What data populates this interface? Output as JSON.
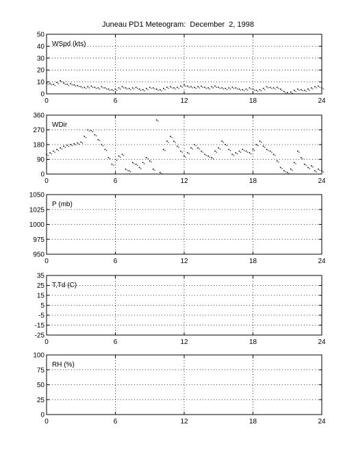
{
  "title": "Juneau PD1 Meteogram:  December  2, 1998",
  "chart_data": [
    {
      "type": "scatter",
      "label": "WSpd (kts)",
      "x_ticks": [
        0,
        6,
        12,
        18,
        24
      ],
      "xlim": [
        0,
        24
      ],
      "ylim": [
        0,
        50
      ],
      "y_ticks": [
        0,
        10,
        20,
        30,
        40,
        50
      ],
      "grid": true,
      "series": [
        {
          "values": [
            [
              0.0,
              9
            ],
            [
              0.3,
              8.5
            ],
            [
              0.6,
              8
            ],
            [
              0.9,
              9.5
            ],
            [
              1.2,
              11
            ],
            [
              1.5,
              9
            ],
            [
              1.8,
              8
            ],
            [
              2.1,
              8.5
            ],
            [
              2.4,
              7.5
            ],
            [
              2.7,
              7
            ],
            [
              3.0,
              6
            ],
            [
              3.3,
              5.5
            ],
            [
              3.6,
              6
            ],
            [
              3.9,
              6.5
            ],
            [
              4.2,
              5.5
            ],
            [
              4.5,
              5
            ],
            [
              4.8,
              6
            ],
            [
              5.1,
              5
            ],
            [
              5.4,
              4
            ],
            [
              5.7,
              3.5
            ],
            [
              6.0,
              4
            ],
            [
              6.3,
              5
            ],
            [
              6.6,
              6
            ],
            [
              6.9,
              5
            ],
            [
              7.2,
              4.5
            ],
            [
              7.5,
              5
            ],
            [
              7.8,
              5.5
            ],
            [
              8.1,
              4
            ],
            [
              8.4,
              3.5
            ],
            [
              8.7,
              4.5
            ],
            [
              9.0,
              5.5
            ],
            [
              9.3,
              5
            ],
            [
              9.6,
              4
            ],
            [
              9.9,
              3.5
            ],
            [
              10.2,
              4.5
            ],
            [
              10.5,
              5.5
            ],
            [
              10.8,
              6
            ],
            [
              11.1,
              5
            ],
            [
              11.4,
              5.5
            ],
            [
              11.7,
              6.5
            ],
            [
              12.0,
              7.5
            ],
            [
              12.3,
              6.5
            ],
            [
              12.6,
              6
            ],
            [
              12.9,
              5.5
            ],
            [
              13.2,
              6
            ],
            [
              13.5,
              6.5
            ],
            [
              13.8,
              5.5
            ],
            [
              14.1,
              5
            ],
            [
              14.4,
              6
            ],
            [
              14.7,
              6.5
            ],
            [
              15.0,
              5.5
            ],
            [
              15.3,
              5
            ],
            [
              15.6,
              4.5
            ],
            [
              15.9,
              5
            ],
            [
              16.2,
              5.5
            ],
            [
              16.5,
              5
            ],
            [
              16.8,
              4
            ],
            [
              17.1,
              3.5
            ],
            [
              17.4,
              4
            ],
            [
              17.7,
              5
            ],
            [
              18.0,
              4
            ],
            [
              18.3,
              3
            ],
            [
              18.6,
              3.5
            ],
            [
              18.9,
              4.5
            ],
            [
              19.2,
              6
            ],
            [
              19.5,
              5.5
            ],
            [
              19.8,
              5
            ],
            [
              20.1,
              5.5
            ],
            [
              20.4,
              4
            ],
            [
              20.7,
              2
            ],
            [
              21.0,
              1
            ],
            [
              21.3,
              1.5
            ],
            [
              21.6,
              3
            ],
            [
              21.9,
              4
            ],
            [
              22.2,
              3.5
            ],
            [
              22.5,
              3
            ],
            [
              22.8,
              4
            ],
            [
              23.1,
              5
            ],
            [
              23.4,
              6
            ],
            [
              23.7,
              6.5
            ],
            [
              24.0,
              5
            ]
          ]
        }
      ]
    },
    {
      "type": "scatter",
      "label": "WDir",
      "x_ticks": [
        0,
        6,
        12,
        18,
        24
      ],
      "xlim": [
        0,
        24
      ],
      "ylim": [
        0,
        360
      ],
      "y_ticks": [
        0,
        90,
        180,
        270,
        360
      ],
      "grid": true,
      "series": [
        {
          "values": [
            [
              0.0,
              120
            ],
            [
              0.3,
              130
            ],
            [
              0.6,
              140
            ],
            [
              0.9,
              150
            ],
            [
              1.2,
              160
            ],
            [
              1.5,
              170
            ],
            [
              1.8,
              175
            ],
            [
              2.1,
              180
            ],
            [
              2.4,
              185
            ],
            [
              2.7,
              190
            ],
            [
              3.0,
              195
            ],
            [
              3.3,
              230
            ],
            [
              3.6,
              270
            ],
            [
              3.9,
              265
            ],
            [
              4.2,
              240
            ],
            [
              4.5,
              210
            ],
            [
              4.8,
              180
            ],
            [
              5.1,
              150
            ],
            [
              5.4,
              100
            ],
            [
              5.7,
              60
            ],
            [
              6.0,
              90
            ],
            [
              6.3,
              110
            ],
            [
              6.6,
              120
            ],
            [
              6.9,
              30
            ],
            [
              7.2,
              20
            ],
            [
              7.5,
              70
            ],
            [
              7.8,
              60
            ],
            [
              8.1,
              40
            ],
            [
              8.4,
              70
            ],
            [
              8.7,
              100
            ],
            [
              9.0,
              80
            ],
            [
              9.3,
              30
            ],
            [
              9.6,
              330
            ],
            [
              9.9,
              10
            ],
            [
              10.2,
              150
            ],
            [
              10.5,
              200
            ],
            [
              10.8,
              230
            ],
            [
              11.1,
              200
            ],
            [
              11.4,
              170
            ],
            [
              11.7,
              140
            ],
            [
              12.0,
              110
            ],
            [
              12.3,
              130
            ],
            [
              12.6,
              160
            ],
            [
              12.9,
              180
            ],
            [
              13.2,
              160
            ],
            [
              13.5,
              140
            ],
            [
              13.8,
              120
            ],
            [
              14.1,
              110
            ],
            [
              14.4,
              100
            ],
            [
              14.7,
              140
            ],
            [
              15.0,
              160
            ],
            [
              15.3,
              200
            ],
            [
              15.6,
              180
            ],
            [
              15.9,
              150
            ],
            [
              16.2,
              120
            ],
            [
              16.5,
              130
            ],
            [
              16.8,
              140
            ],
            [
              17.1,
              150
            ],
            [
              17.4,
              140
            ],
            [
              17.7,
              130
            ],
            [
              18.0,
              150
            ],
            [
              18.3,
              180
            ],
            [
              18.6,
              200
            ],
            [
              18.9,
              170
            ],
            [
              19.2,
              150
            ],
            [
              19.5,
              140
            ],
            [
              19.8,
              120
            ],
            [
              20.1,
              80
            ],
            [
              20.4,
              40
            ],
            [
              20.7,
              20
            ],
            [
              21.0,
              10
            ],
            [
              21.3,
              30
            ],
            [
              21.6,
              70
            ],
            [
              21.9,
              140
            ],
            [
              22.2,
              100
            ],
            [
              22.5,
              60
            ],
            [
              22.8,
              40
            ],
            [
              23.1,
              50
            ],
            [
              23.4,
              20
            ],
            [
              23.7,
              30
            ],
            [
              24.0,
              20
            ]
          ]
        }
      ]
    },
    {
      "type": "scatter",
      "label": "P (mb)",
      "x_ticks": [
        0,
        6,
        12,
        18,
        24
      ],
      "xlim": [
        0,
        24
      ],
      "ylim": [
        950,
        1050
      ],
      "y_ticks": [
        950,
        975,
        1000,
        1025,
        1050
      ],
      "grid": true,
      "series": []
    },
    {
      "type": "scatter",
      "label": "T,Td (C)",
      "x_ticks": [
        0,
        6,
        12,
        18,
        24
      ],
      "xlim": [
        0,
        24
      ],
      "ylim": [
        -25,
        35
      ],
      "y_ticks": [
        -25,
        -15,
        -5,
        5,
        15,
        25,
        35
      ],
      "extra_ticks": [
        -25,
        -15,
        -5,
        5,
        15,
        25,
        35
      ],
      "grid": true,
      "series": []
    },
    {
      "type": "scatter",
      "label": "RH (%)",
      "x_ticks": [
        0,
        6,
        12,
        18,
        24
      ],
      "xlim": [
        0,
        24
      ],
      "ylim": [
        0,
        100
      ],
      "y_ticks": [
        0,
        25,
        50,
        75,
        100
      ],
      "grid": true,
      "series": []
    }
  ]
}
